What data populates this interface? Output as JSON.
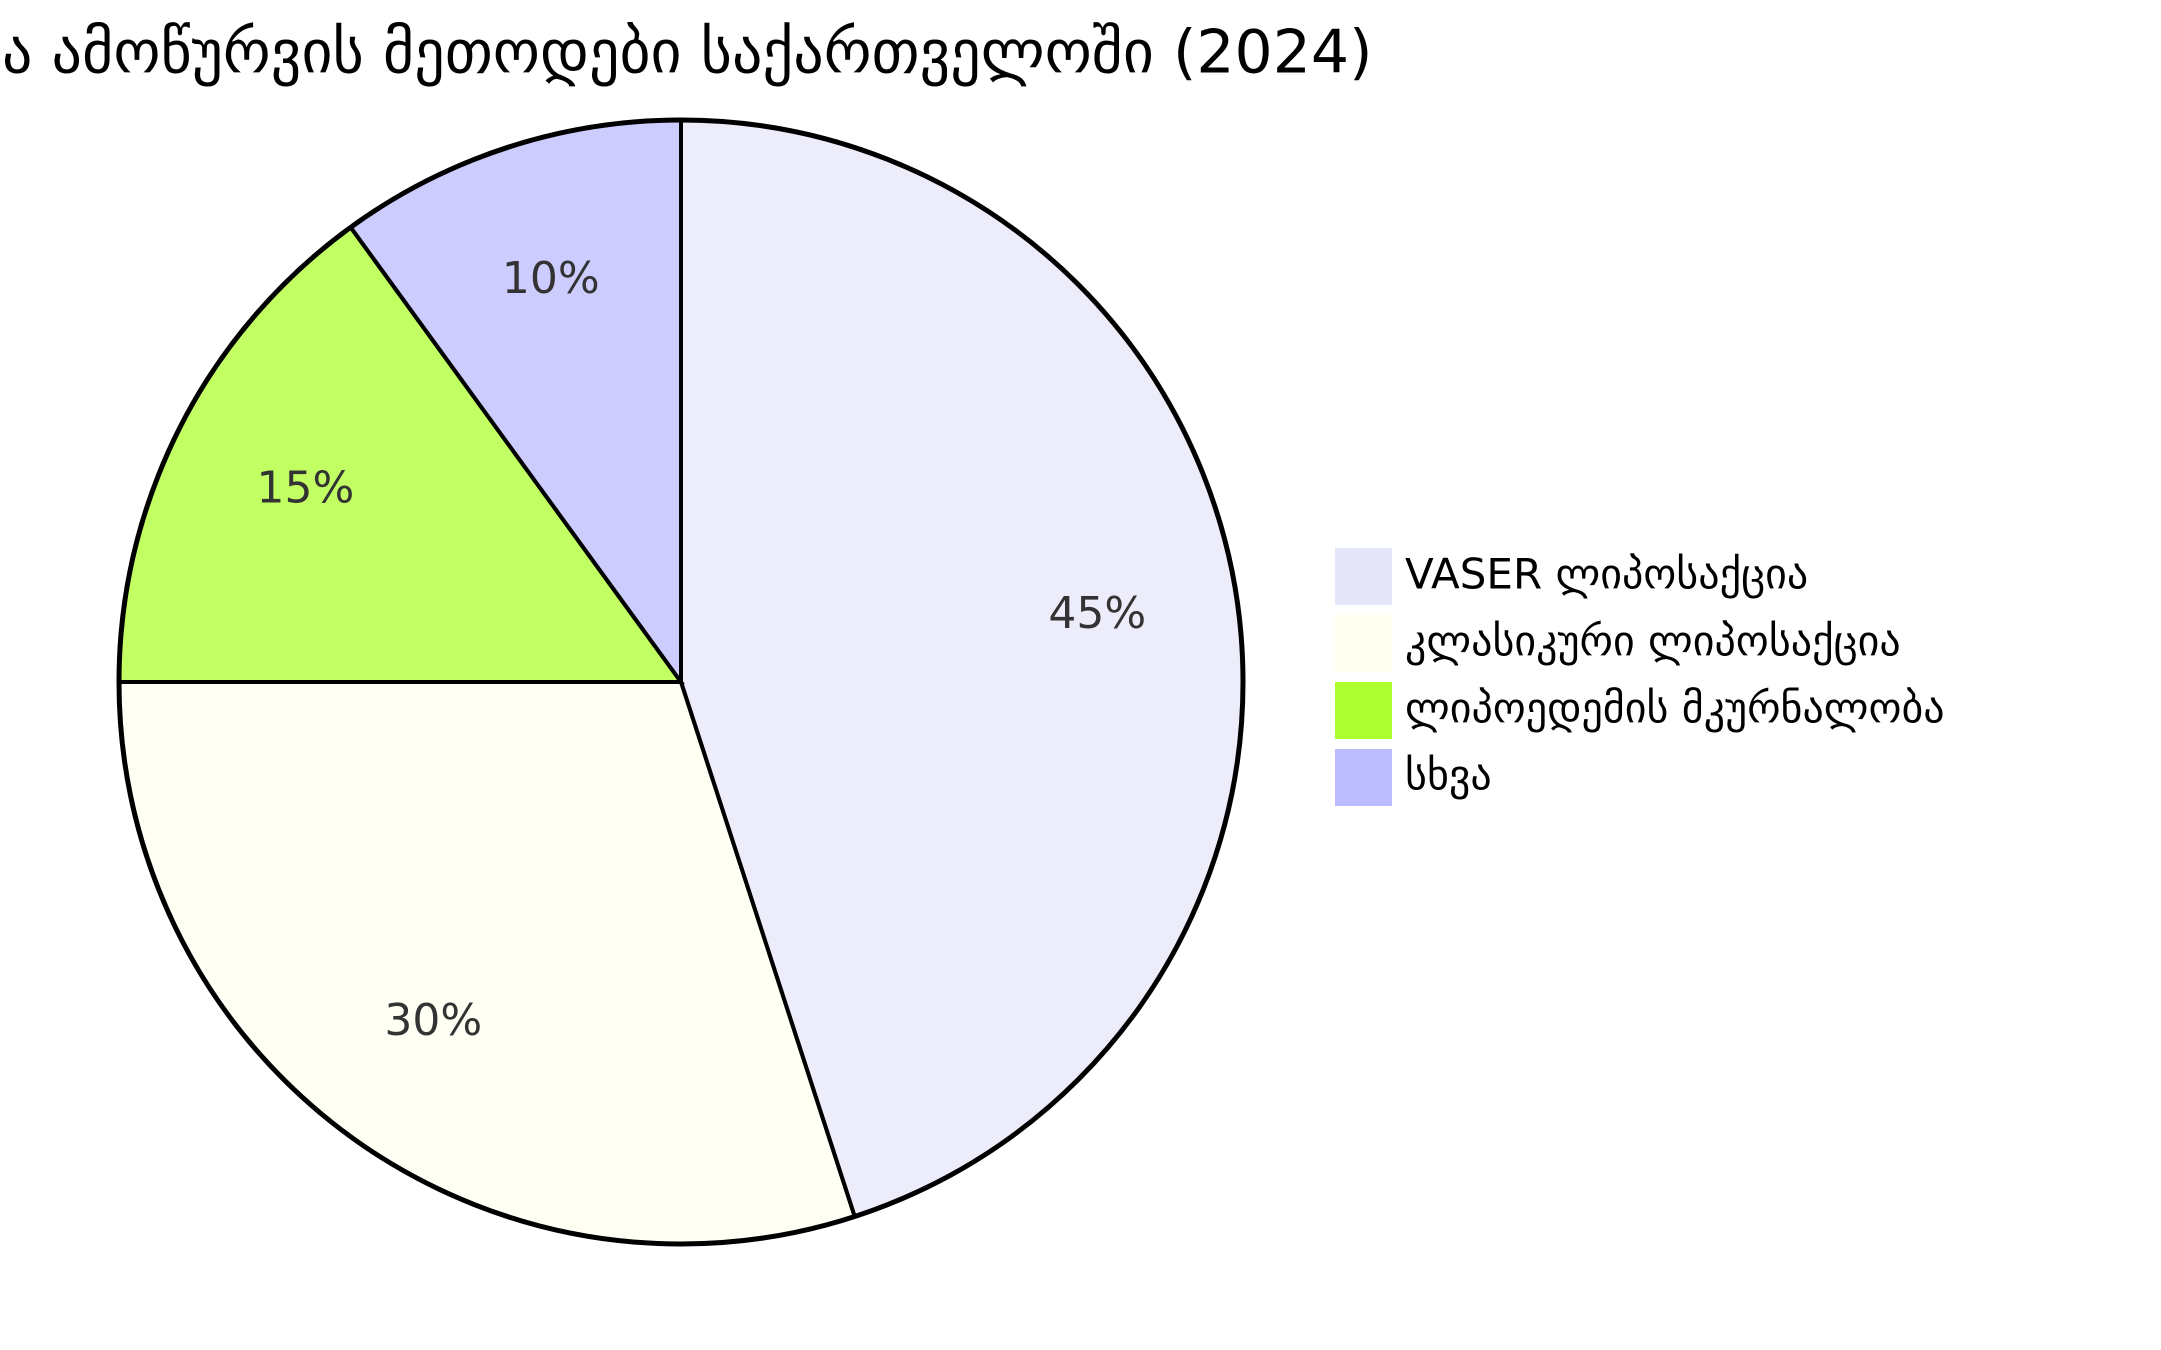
{
  "chart_data": {
    "type": "pie",
    "title": "ა ამოწურვის მეთოდები საქართველოში (2024)",
    "categories": [
      "VASER ლიპოსაქცია",
      "კლასიკური ლიპოსაქცია",
      "ლიპოედემის მკურნალობა",
      "სხვა"
    ],
    "values": [
      45,
      30,
      15,
      10
    ],
    "value_labels": [
      "45%",
      "30%",
      "15%",
      "10%"
    ],
    "colors": [
      "#e6e6fa",
      "#fffff0",
      "#adff2f",
      "#bbbbff"
    ],
    "legend": "right"
  }
}
